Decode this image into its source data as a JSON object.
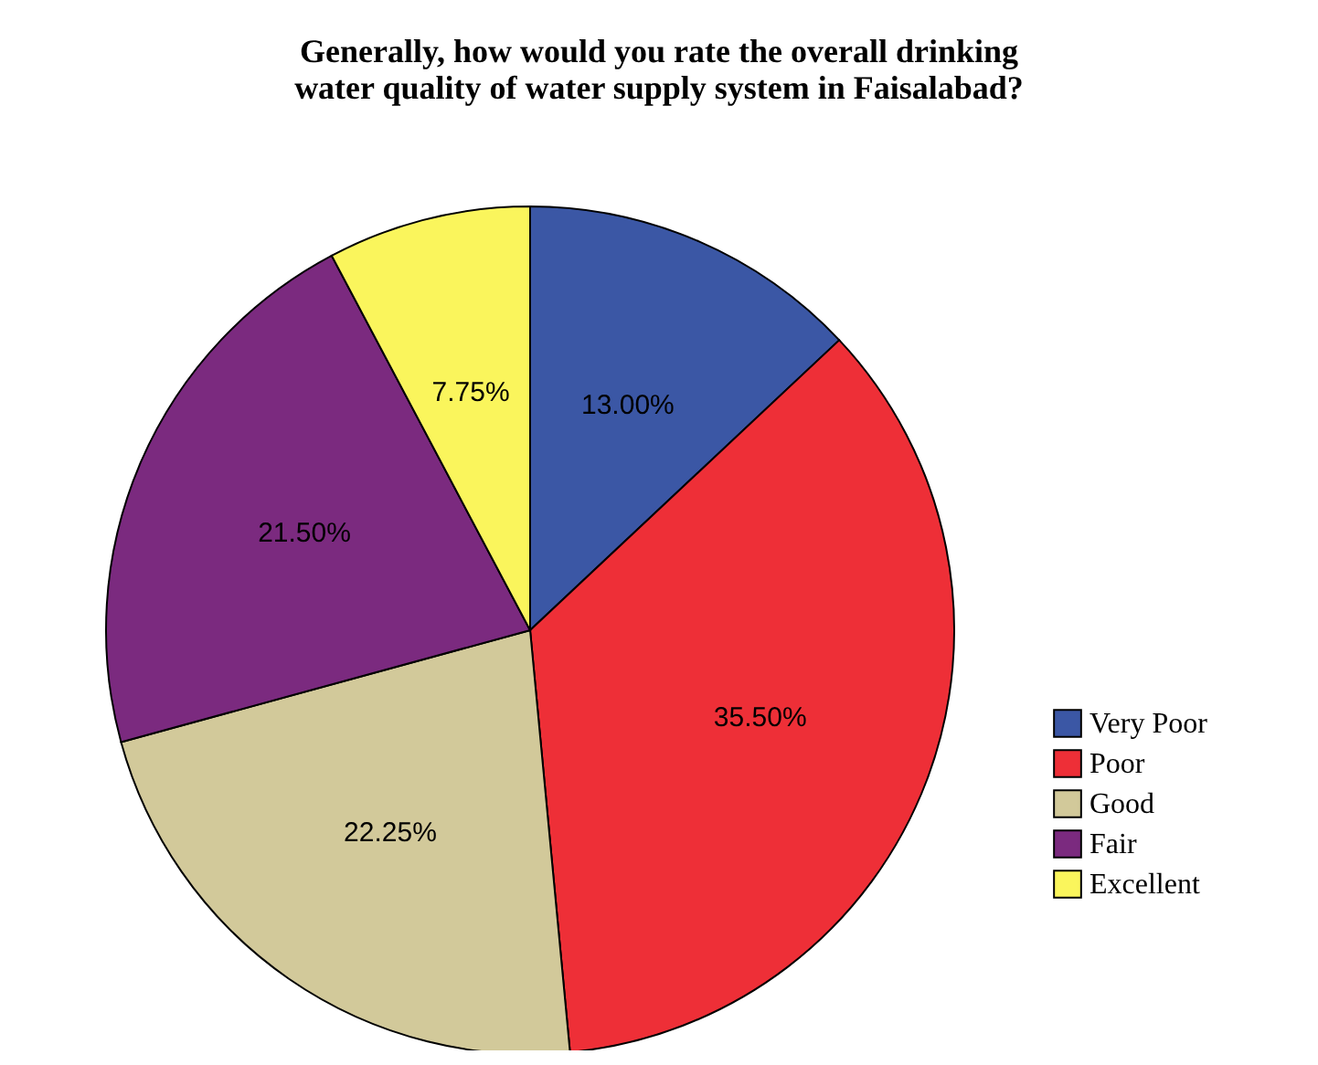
{
  "chart_data": {
    "type": "pie",
    "title": "Generally, how would you rate the overall drinking water quality of water supply system in Faisalabad?",
    "categories": [
      "Very Poor",
      "Poor",
      "Good",
      "Fair",
      "Excellent"
    ],
    "values": [
      13,
      35.5,
      22.25,
      21.5,
      7.75
    ],
    "value_labels": [
      "13.00%",
      "35.50%",
      "22.25%",
      "21.50%",
      "7.75%"
    ],
    "colors": [
      "#3b57a5",
      "#ee2f37",
      "#d2c99a",
      "#7b2a7f",
      "#faf55c"
    ],
    "legend": "right"
  }
}
